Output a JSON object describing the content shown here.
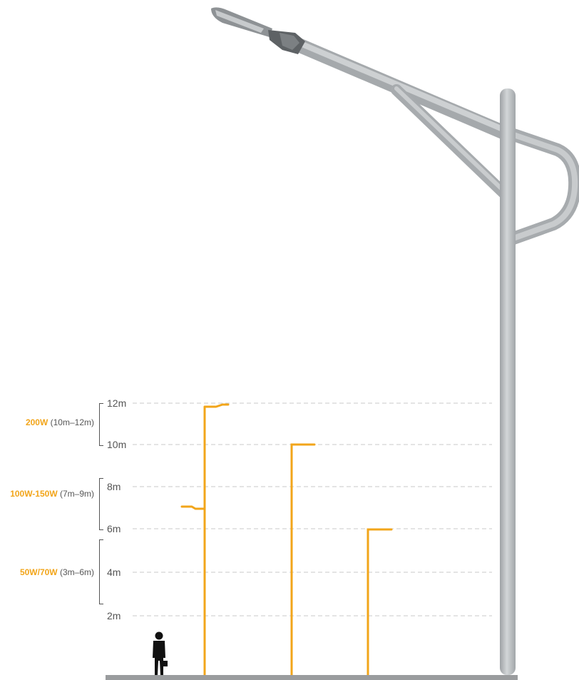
{
  "heights": [
    "12m",
    "10m",
    "8m",
    "6m",
    "4m",
    "2m"
  ],
  "ranges": [
    {
      "watt": "200W",
      "span": "(10m–12m)"
    },
    {
      "watt": "100W-150W",
      "span": "(7m–9m)"
    },
    {
      "watt": "50W/70W",
      "span": "(3m–6m)"
    }
  ],
  "colors": {
    "accent": "#F2A51A",
    "pole": "#B7BABC",
    "ground": "#9A9C9E",
    "dash": "#C9C9C9"
  },
  "icons": [
    "street-lamp-icon",
    "person-silhouette-icon"
  ]
}
